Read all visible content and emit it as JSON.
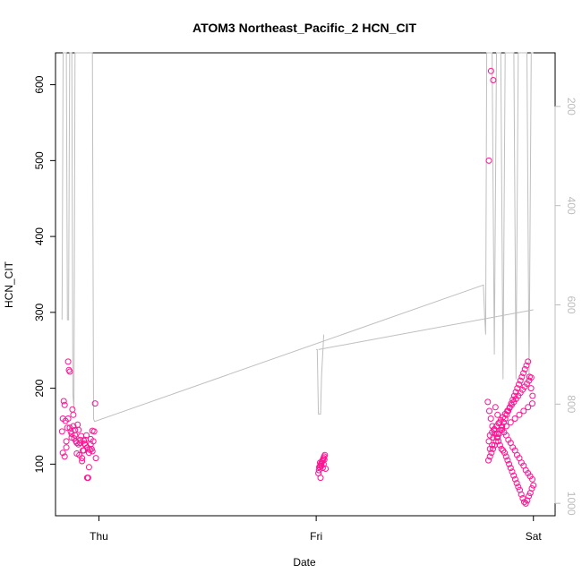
{
  "chart_data": {
    "type": "scatter",
    "title": "ATOM3 Northeast_Pacific_2 HCN_CIT",
    "xlabel": "Date",
    "ylabel": "HCN_CIT",
    "x_tick_labels": [
      "Thu",
      "Fri",
      "Sat"
    ],
    "x_tick_values": [
      0,
      1,
      2
    ],
    "xlim": [
      -0.2,
      2.1
    ],
    "ylim": [
      32,
      642
    ],
    "y_ticks": [
      100,
      200,
      300,
      400,
      500,
      600
    ],
    "y2_ticks": [
      200,
      400,
      600,
      800,
      1000
    ],
    "y2lim": [
      1025,
      92
    ],
    "grid": false,
    "series": [
      {
        "marker": "open-circle",
        "color": "#ff1493",
        "x": [
          -0.17,
          -0.166,
          -0.162,
          -0.158,
          -0.154,
          -0.15,
          -0.146,
          -0.142,
          -0.138,
          -0.134,
          -0.13,
          -0.126,
          -0.122,
          -0.118,
          -0.114,
          -0.11,
          -0.106,
          -0.102,
          -0.098,
          -0.094,
          -0.09,
          -0.086,
          -0.082,
          -0.078,
          -0.074,
          -0.07,
          -0.066,
          -0.062,
          -0.058,
          -0.054,
          -0.05,
          -0.046,
          -0.042,
          -0.038,
          -0.034,
          -0.03,
          -0.026,
          -0.022,
          -0.018,
          -0.014,
          -0.166,
          -0.158,
          -0.15,
          -0.142,
          -0.134,
          -0.126,
          -0.118,
          -0.11,
          -0.102,
          -0.094,
          -0.086,
          -0.078,
          -0.07,
          -0.062,
          -0.054,
          -0.046,
          -0.038,
          -0.03,
          1.01,
          1.013,
          1.016,
          1.019,
          1.022,
          1.025,
          1.028,
          1.031,
          1.034,
          1.037,
          1.04,
          1.043,
          1.014,
          1.024,
          1.034,
          1.018,
          1.028,
          1.038,
          1.02,
          1.03,
          1.79,
          1.797,
          1.804,
          1.811,
          1.818,
          1.825,
          1.832,
          1.839,
          1.846,
          1.853,
          1.86,
          1.867,
          1.874,
          1.881,
          1.888,
          1.895,
          1.902,
          1.909,
          1.916,
          1.923,
          1.93,
          1.937,
          1.944,
          1.951,
          1.958,
          1.965,
          1.972,
          1.979,
          1.986,
          1.993,
          2.0,
          1.793,
          1.8,
          1.807,
          1.814,
          1.821,
          1.828,
          1.835,
          1.842,
          1.849,
          1.856,
          1.863,
          1.87,
          1.877,
          1.884,
          1.891,
          1.898,
          1.905,
          1.912,
          1.919,
          1.926,
          1.933,
          1.94,
          1.947,
          1.954,
          1.961,
          1.968,
          1.975,
          1.982,
          1.989,
          1.996,
          1.795,
          1.805,
          1.815,
          1.825,
          1.835,
          1.845,
          1.855,
          1.865,
          1.875,
          1.885,
          1.895,
          1.905,
          1.915,
          1.925,
          1.935,
          1.945,
          1.955,
          1.965,
          1.975,
          1.985,
          1.995,
          1.8,
          1.81,
          1.82,
          1.83,
          1.84,
          1.85,
          1.86,
          1.87,
          1.88,
          1.89,
          1.9,
          1.91,
          1.92,
          1.93,
          1.94,
          1.95,
          1.96,
          1.97,
          1.98,
          1.99,
          1.795,
          1.815,
          1.835,
          1.855,
          1.875,
          1.895,
          1.915,
          1.935,
          1.955,
          1.975,
          1.995,
          1.8,
          1.81
        ],
        "y": [
          143,
          160,
          183,
          178,
          157,
          130,
          148,
          235,
          224,
          222,
          143,
          140,
          172,
          165,
          134,
          145,
          130,
          114,
          152,
          126,
          112,
          128,
          137,
          104,
          118,
          131,
          127,
          132,
          138,
          122,
          82,
          115,
          119,
          126,
          120,
          144,
          130,
          143,
          180,
          108,
          115,
          110,
          122,
          160,
          148,
          135,
          150,
          138,
          128,
          145,
          132,
          108,
          118,
          125,
          82,
          96,
          133,
          117,
          88,
          92,
          96,
          98,
          100,
          102,
          104,
          106,
          108,
          110,
          112,
          94,
          96,
          98,
          100,
          102,
          104,
          106,
          82,
          95,
          182,
          170,
          160,
          150,
          145,
          140,
          135,
          130,
          125,
          120,
          118,
          115,
          110,
          105,
          100,
          95,
          90,
          85,
          80,
          75,
          70,
          66,
          60,
          55,
          50,
          48,
          52,
          58,
          62,
          68,
          72,
          105,
          110,
          115,
          120,
          125,
          130,
          135,
          140,
          145,
          150,
          155,
          160,
          165,
          170,
          175,
          180,
          185,
          190,
          195,
          200,
          205,
          210,
          215,
          220,
          225,
          230,
          235,
          215,
          200,
          190,
          500,
          618,
          606,
          175,
          165,
          155,
          148,
          142,
          138,
          132,
          128,
          122,
          118,
          112,
          108,
          102,
          98,
          92,
          88,
          84,
          80,
          138,
          142,
          146,
          150,
          154,
          158,
          162,
          166,
          170,
          174,
          178,
          182,
          186,
          190,
          194,
          198,
          202,
          206,
          210,
          214,
          130,
          135,
          140,
          145,
          150,
          155,
          160,
          165,
          170,
          175,
          180,
          120,
          125
        ]
      }
    ],
    "overlay_line": {
      "color": "#bfbfbf",
      "axis": "right",
      "segments": [
        {
          "x": [
            -0.17,
            -0.165,
            -0.16,
            -0.155,
            -0.15,
            -0.145,
            -0.14,
            -0.135,
            -0.13,
            -0.125,
            -0.12,
            -0.115,
            -0.11,
            -0.105,
            -0.1,
            -0.095,
            -0.09,
            -0.085,
            -0.08,
            -0.075,
            -0.07,
            -0.065,
            -0.06,
            -0.055,
            -0.05,
            -0.045,
            -0.04,
            -0.035,
            -0.03,
            -0.025,
            -0.02,
            1.77,
            1.775,
            1.78,
            1.785,
            1.79,
            1.8,
            1.81,
            1.82,
            1.83,
            1.84,
            1.85,
            1.86,
            1.87,
            1.88,
            1.89,
            1.9,
            1.91,
            1.92,
            1.93,
            1.94,
            1.95,
            1.96,
            1.97,
            1.98,
            1.99,
            2.0
          ],
          "y": [
            630,
            92,
            92,
            92,
            92,
            630,
            630,
            92,
            92,
            92,
            780,
            810,
            92,
            92,
            92,
            92,
            92,
            92,
            92,
            92,
            92,
            92,
            92,
            92,
            92,
            92,
            92,
            92,
            92,
            830,
            835,
            560,
            620,
            660,
            92,
            92,
            92,
            92,
            700,
            92,
            92,
            92,
            750,
            92,
            92,
            92,
            92,
            92,
            750,
            92,
            92,
            92,
            92,
            92,
            750,
            92,
            92
          ]
        },
        {
          "x": [
            1.0,
            1.005,
            1.01,
            1.015,
            1.02,
            1.025,
            1.03,
            1.035
          ],
          "y": [
            690,
            690,
            820,
            820,
            820,
            740,
            700,
            660
          ]
        },
        {
          "x": [
            1.01,
            2.0
          ],
          "y": [
            690,
            610
          ]
        }
      ]
    }
  }
}
